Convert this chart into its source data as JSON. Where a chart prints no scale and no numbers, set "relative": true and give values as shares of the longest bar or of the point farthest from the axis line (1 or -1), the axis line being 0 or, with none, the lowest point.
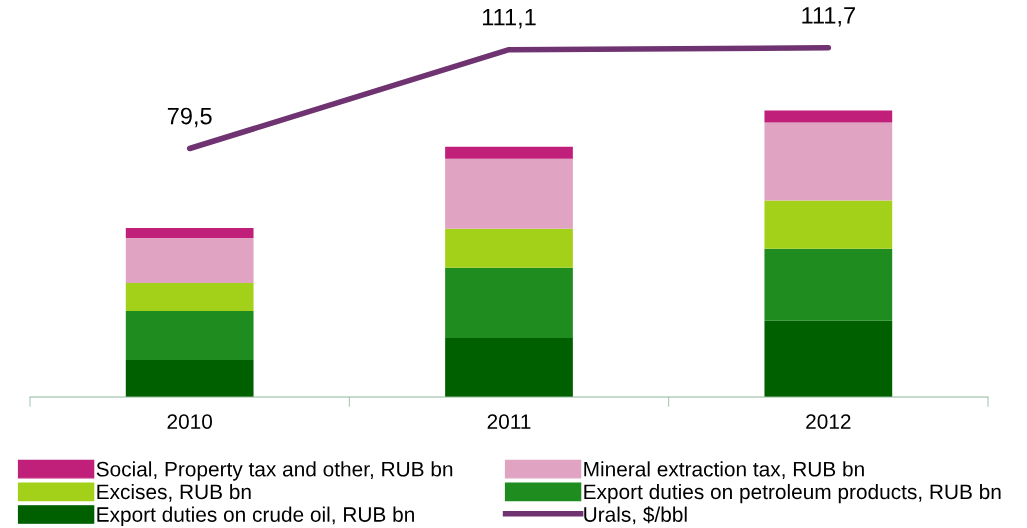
{
  "chart_data": [
    {
      "type": "bar",
      "stacked": true,
      "relative": true,
      "legend": "bottom",
      "tick_labels": "x",
      "categories": [
        "2010",
        "2011",
        "2012"
      ],
      "series": [
        {
          "name": "Export duties on crude oil, RUB bn",
          "color": "#006000",
          "values": [
            0.129,
            0.206,
            0.266
          ]
        },
        {
          "name": "Export duties on petroleum products, RUB bn",
          "color": "#1e8c1e",
          "values": [
            0.171,
            0.245,
            0.252
          ]
        },
        {
          "name": "Excises, RUB bn",
          "color": "#a3d11a",
          "values": [
            0.098,
            0.136,
            0.168
          ]
        },
        {
          "name": "Mineral extraction tax, RUB bn",
          "color": "#e0a3c2",
          "values": [
            0.157,
            0.245,
            0.272
          ]
        },
        {
          "name": "Social, Property tax and other, RUB bn",
          "color": "#c0207a",
          "values": [
            0.035,
            0.042,
            0.042
          ]
        }
      ]
    },
    {
      "type": "line",
      "legend": "bottom",
      "tick_labels": false,
      "categories": [
        "2010",
        "2011",
        "2012"
      ],
      "series": [
        {
          "name": "Urals, $/bbl",
          "color": "#6e3370",
          "values": [
            79.5,
            111.1,
            111.7
          ],
          "value_labels": [
            "79,5",
            "111,1",
            "111,7"
          ]
        }
      ]
    }
  ]
}
